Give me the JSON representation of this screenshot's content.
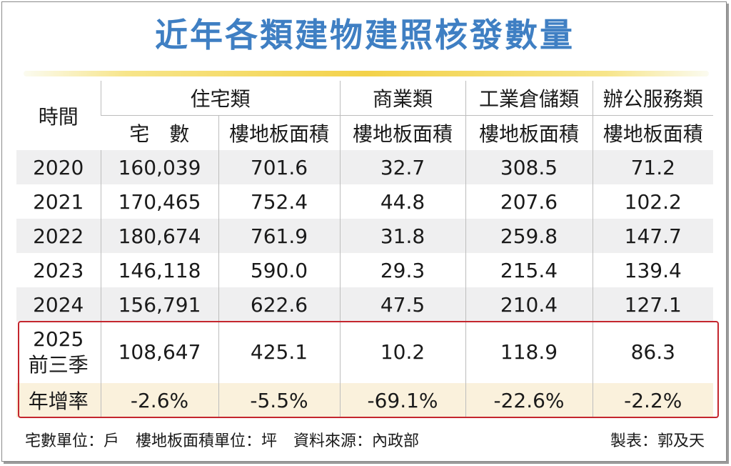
{
  "title": "近年各類建物建照核發數量",
  "header": {
    "time": "時間",
    "groups": [
      "住宅類",
      "商業類",
      "工業倉儲類",
      "辦公服務類"
    ],
    "subs": [
      "宅　數",
      "樓地板面積",
      "樓地板面積",
      "樓地板面積",
      "樓地板面積"
    ]
  },
  "rows": [
    {
      "period": "2020",
      "cells": [
        "160,039",
        "701.6",
        "32.7",
        "308.5",
        "71.2"
      ]
    },
    {
      "period": "2021",
      "cells": [
        "170,465",
        "752.4",
        "44.8",
        "207.6",
        "102.2"
      ]
    },
    {
      "period": "2022",
      "cells": [
        "180,674",
        "761.9",
        "31.8",
        "259.8",
        "147.7"
      ]
    },
    {
      "period": "2023",
      "cells": [
        "146,118",
        "590.0",
        "29.3",
        "215.4",
        "139.4"
      ]
    },
    {
      "period": "2024",
      "cells": [
        "156,791",
        "622.6",
        "47.5",
        "210.4",
        "127.1"
      ]
    }
  ],
  "highlight": {
    "period_line1": "2025",
    "period_line2": "前三季",
    "cells": [
      "108,647",
      "425.1",
      "10.2",
      "118.9",
      "86.3"
    ],
    "growth_label": "年增率",
    "growth": [
      "-2.6%",
      "-5.5%",
      "-69.1%",
      "-22.6%",
      "-2.2%"
    ]
  },
  "footer": {
    "unit_households": "宅數單位：戶",
    "unit_area": "樓地板面積單位：坪",
    "source": "資料來源：內政部",
    "credit": "製表：郭及天"
  },
  "colors": {
    "title": "#3f7fc3",
    "accent_bar": "#f3d24a",
    "highlight_border": "#c4262e",
    "growth_row_bg": "#faf1dc"
  }
}
